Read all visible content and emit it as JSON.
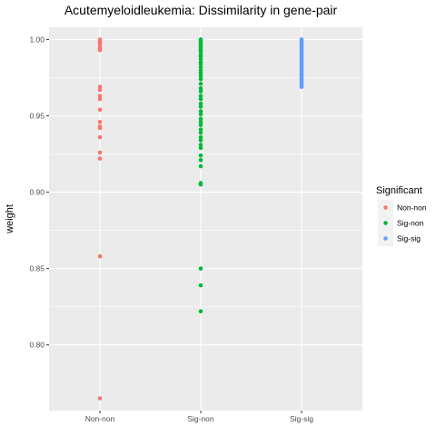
{
  "chart_data": {
    "type": "scatter",
    "title": "Acutemyeloidleukemia: Dissimilarity in gene-pair",
    "xlabel": "",
    "ylabel": "weight",
    "categories": [
      "Non-non",
      "Sig-non",
      "Sig-sig"
    ],
    "ylim": [
      0.757,
      1.008
    ],
    "yticks": [
      0.8,
      0.85,
      0.9,
      0.95,
      1.0
    ],
    "ytick_labels": [
      "0.80",
      "0.85",
      "0.90",
      "0.95",
      "1.00"
    ],
    "grid": true,
    "legend": {
      "title": "Significant",
      "placement": "right",
      "entries": [
        "Non-non",
        "Sig-non",
        "Sig-sig"
      ]
    },
    "colors": {
      "Non-non": "#F8766D",
      "Sig-non": "#00BA38",
      "Sig-sig": "#619CFF",
      "panel": "#EBEBEB",
      "grid": "#FFFFFF"
    },
    "series": [
      {
        "name": "Non-non",
        "category": "Non-non",
        "values": [
          1.0,
          0.999,
          0.998,
          0.997,
          0.995,
          0.994,
          0.993,
          0.969,
          0.967,
          0.963,
          0.961,
          0.954,
          0.946,
          0.943,
          0.942,
          0.936,
          0.926,
          0.922,
          0.858,
          0.765
        ]
      },
      {
        "name": "Sig-non",
        "category": "Sig-non",
        "values": [
          1.0,
          0.999,
          0.998,
          0.997,
          0.996,
          0.995,
          0.994,
          0.993,
          0.992,
          0.99,
          0.989,
          0.987,
          0.985,
          0.984,
          0.982,
          0.98,
          0.978,
          0.976,
          0.974,
          0.971,
          0.968,
          0.966,
          0.963,
          0.961,
          0.958,
          0.956,
          0.953,
          0.951,
          0.948,
          0.946,
          0.944,
          0.941,
          0.939,
          0.936,
          0.934,
          0.931,
          0.929,
          0.924,
          0.921,
          0.917,
          0.906,
          0.905,
          0.85,
          0.839,
          0.822
        ]
      },
      {
        "name": "Sig-sig",
        "category": "Sig-sig",
        "values": [
          1.0,
          0.999,
          0.998,
          0.997,
          0.996,
          0.995,
          0.994,
          0.993,
          0.992,
          0.991,
          0.99,
          0.989,
          0.988,
          0.987,
          0.986,
          0.985,
          0.984,
          0.983,
          0.982,
          0.981,
          0.98,
          0.979,
          0.978,
          0.977,
          0.976,
          0.975,
          0.974,
          0.973,
          0.972,
          0.971,
          0.97,
          0.969
        ]
      }
    ]
  }
}
